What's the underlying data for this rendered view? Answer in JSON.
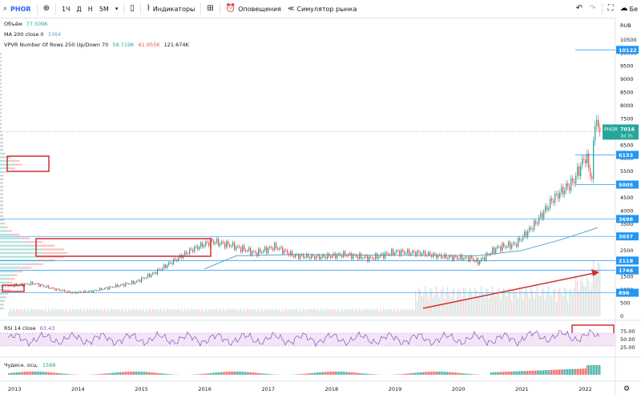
{
  "toolbar": {
    "symbol": "PHOR",
    "add_icon": "plus-circle-icon",
    "intervals": [
      "1Ч",
      "Д",
      "Н",
      "5М"
    ],
    "chart_type_icon": "candles-icon",
    "indicators_label": "Индикаторы",
    "layout_icon": "grid-icon",
    "alerts_label": "Оповещения",
    "replay_label": "Симулятор рынка",
    "undo_icon": "undo-icon",
    "redo_icon": "redo-icon",
    "fullscreen_icon": "fullscreen-icon",
    "cloud_label": "Бе"
  },
  "legends": {
    "volume_name": "Объём",
    "volume_value": "77.509K",
    "ma_name": "MA 200 close 0",
    "ma_value": "3364",
    "vpvr_name": "VPVR Number Of Rows 250 Up/Down 70",
    "vpvr_v1": "59.719K",
    "vpvr_v2": "61.955K",
    "vpvr_v3": "121.674K",
    "rsi_name": "RSI 14 close",
    "rsi_value": "63.43",
    "ao_name": "Чудесн. осц.",
    "ao_value": "1588"
  },
  "colors": {
    "up": "#26a69a",
    "down": "#ef5350",
    "ma": "#5ba4cf",
    "price_tag": "#26a69a",
    "level_tag": "#2196f3",
    "annotation": "#d32f2f",
    "rsi": "#7e57c2",
    "rsi_band": "#f3e5f5"
  },
  "chart_data": {
    "type": "candlestick",
    "currency": "RUB",
    "x_labels": [
      "2013",
      "2014",
      "2015",
      "2016",
      "2017",
      "2018",
      "2019",
      "2020",
      "2021",
      "2022"
    ],
    "y_ticks": [
      0,
      500,
      1000,
      1500,
      2500,
      3000,
      3500,
      4000,
      4500,
      5000,
      5500,
      6000,
      6500,
      7000,
      7500,
      8000,
      8500,
      9000,
      9500,
      10000,
      10500
    ],
    "ylim": [
      0,
      10800
    ],
    "price_series": [
      {
        "t": 2012.9,
        "v": 1150
      },
      {
        "t": 2013.3,
        "v": 1250
      },
      {
        "t": 2013.6,
        "v": 1050
      },
      {
        "t": 2013.9,
        "v": 900
      },
      {
        "t": 2014.2,
        "v": 950
      },
      {
        "t": 2014.6,
        "v": 1150
      },
      {
        "t": 2014.9,
        "v": 1300
      },
      {
        "t": 2015.2,
        "v": 1650
      },
      {
        "t": 2015.5,
        "v": 2100
      },
      {
        "t": 2015.8,
        "v": 2550
      },
      {
        "t": 2016.1,
        "v": 2850
      },
      {
        "t": 2016.4,
        "v": 2700
      },
      {
        "t": 2016.8,
        "v": 2400
      },
      {
        "t": 2017.1,
        "v": 2650
      },
      {
        "t": 2017.4,
        "v": 2300
      },
      {
        "t": 2017.8,
        "v": 2250
      },
      {
        "t": 2018.2,
        "v": 2350
      },
      {
        "t": 2018.6,
        "v": 2200
      },
      {
        "t": 2019.0,
        "v": 2450
      },
      {
        "t": 2019.4,
        "v": 2400
      },
      {
        "t": 2019.8,
        "v": 2250
      },
      {
        "t": 2020.2,
        "v": 2200
      },
      {
        "t": 2020.3,
        "v": 2050
      },
      {
        "t": 2020.6,
        "v": 2600
      },
      {
        "t": 2020.9,
        "v": 2750
      },
      {
        "t": 2021.2,
        "v": 3500
      },
      {
        "t": 2021.5,
        "v": 4500
      },
      {
        "t": 2021.8,
        "v": 5100
      },
      {
        "t": 2022.0,
        "v": 6100
      },
      {
        "t": 2022.1,
        "v": 5200
      },
      {
        "t": 2022.15,
        "v": 7700
      },
      {
        "t": 2022.2,
        "v": 7016
      }
    ],
    "ma200": [
      {
        "t": 2016.0,
        "v": 1800
      },
      {
        "t": 2016.5,
        "v": 2300
      },
      {
        "t": 2017.5,
        "v": 2350
      },
      {
        "t": 2019.0,
        "v": 2320
      },
      {
        "t": 2020.3,
        "v": 2300
      },
      {
        "t": 2021.0,
        "v": 2500
      },
      {
        "t": 2021.6,
        "v": 2900
      },
      {
        "t": 2022.2,
        "v": 3364
      }
    ],
    "levels": [
      {
        "label": "10122",
        "v": 10122
      },
      {
        "label": "6133",
        "v": 6133
      },
      {
        "label": "5005",
        "v": 5005
      },
      {
        "label": "3698",
        "v": 3698
      },
      {
        "label": "3037",
        "v": 3037
      },
      {
        "label": "2118",
        "v": 2118
      },
      {
        "label": "1746",
        "v": 1746
      },
      {
        "label": "896",
        "v": 896
      }
    ],
    "current_price": {
      "label": "7016",
      "symbol": "PHOR",
      "time_left": "3d 7h",
      "v": 7016
    },
    "rsi": {
      "ticks": [
        "75.00",
        "50.00",
        "25.00"
      ],
      "upper": 70,
      "lower": 30
    },
    "annotations": [
      {
        "kind": "rect",
        "what": "volume-profile-node"
      },
      {
        "kind": "rect",
        "what": "consolidation-zone"
      },
      {
        "kind": "rect",
        "what": "low-2013"
      },
      {
        "kind": "rect",
        "what": "rsi-divergence"
      },
      {
        "kind": "arrow",
        "what": "rising-volume"
      }
    ]
  }
}
